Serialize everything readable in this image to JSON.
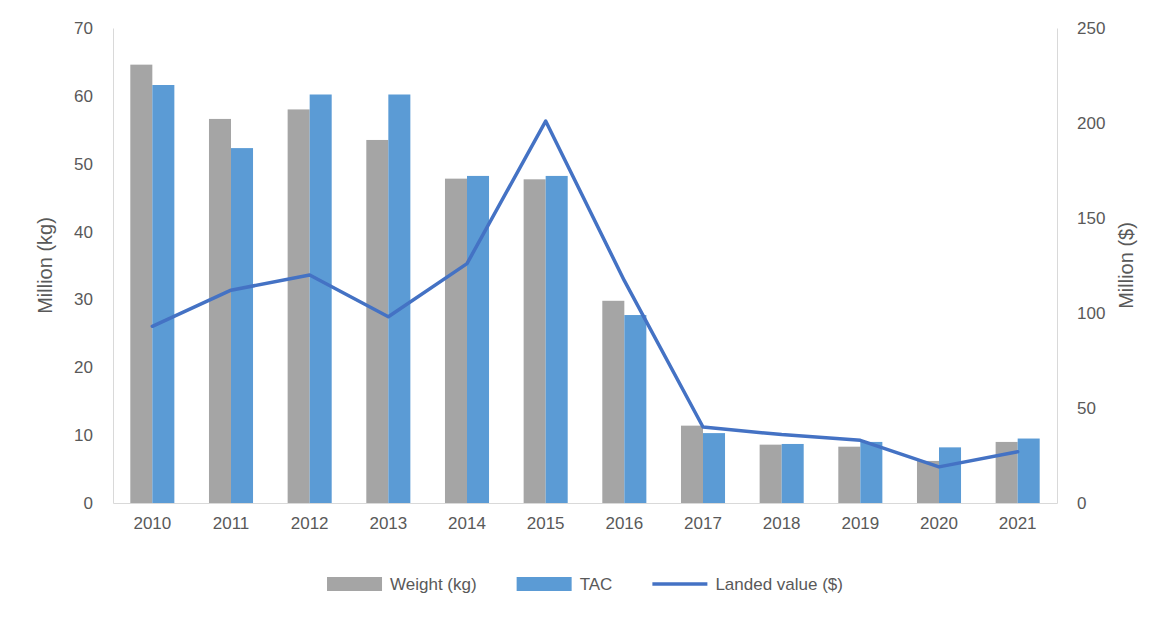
{
  "chart_data": {
    "type": "bar",
    "categories": [
      "2010",
      "2011",
      "2012",
      "2013",
      "2014",
      "2015",
      "2016",
      "2017",
      "2018",
      "2019",
      "2020",
      "2021"
    ],
    "series": [
      {
        "name": "Weight (kg)",
        "type": "bar",
        "color": "#a5a5a5",
        "values": [
          64.6,
          56.6,
          58.0,
          53.5,
          47.8,
          47.7,
          29.8,
          11.4,
          8.6,
          8.3,
          6.2,
          9.0
        ]
      },
      {
        "name": "TAC",
        "type": "bar",
        "color": "#5b9bd5",
        "values": [
          61.6,
          52.3,
          60.2,
          60.2,
          48.2,
          48.2,
          27.7,
          10.3,
          8.7,
          9.0,
          8.2,
          9.5
        ]
      },
      {
        "name": "Landed value ($)",
        "type": "line",
        "axis": "y2",
        "color": "#4472c4",
        "values": [
          93,
          112,
          120,
          98,
          126,
          201,
          117,
          40,
          36,
          33,
          19,
          27
        ]
      }
    ],
    "y_label": "Million (kg)",
    "y2_label": "Million ($)",
    "ylim": [
      0,
      70
    ],
    "yticks": [
      0,
      10,
      20,
      30,
      40,
      50,
      60,
      70
    ],
    "y2lim": [
      0,
      250
    ],
    "y2ticks": [
      0,
      50,
      100,
      150,
      200,
      250
    ],
    "grid": false,
    "legend": "bottom"
  }
}
